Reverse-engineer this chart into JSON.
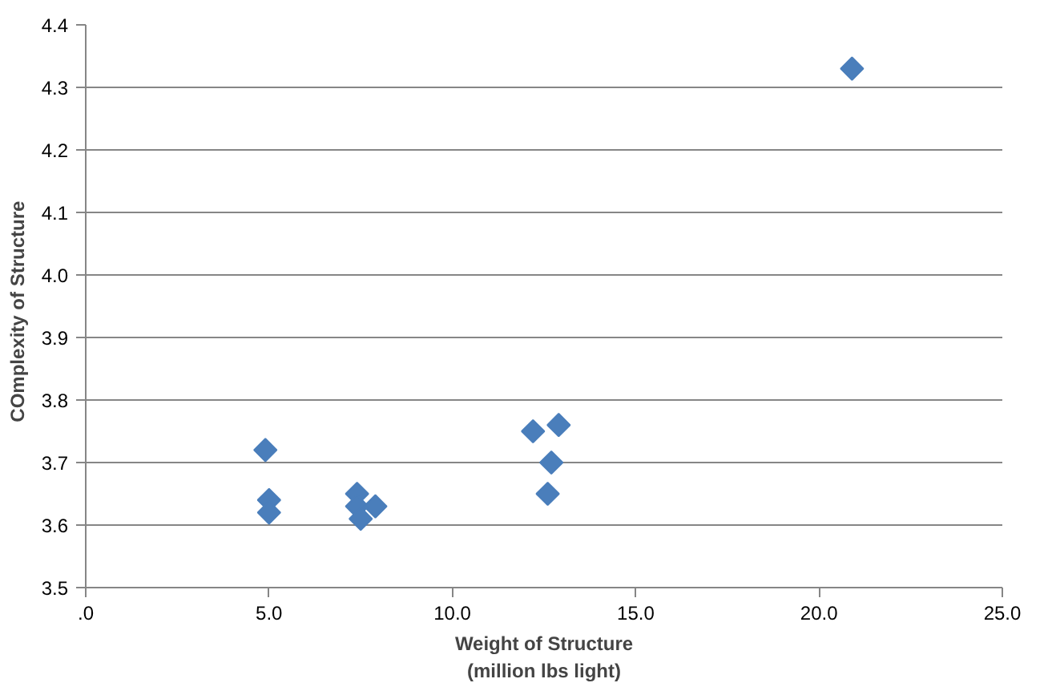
{
  "chart_data": {
    "type": "scatter",
    "xlabel": "Weight of Structure\n(million lbs light)",
    "ylabel": "COmplexity  of  Structure",
    "x": [
      4.9,
      5.0,
      5.0,
      7.4,
      7.4,
      7.5,
      7.9,
      12.2,
      12.9,
      12.7,
      12.6,
      20.9
    ],
    "series": [
      {
        "color": "#4a7ebb",
        "values": [
          3.72,
          3.64,
          3.62,
          3.65,
          3.63,
          3.61,
          3.63,
          3.75,
          3.76,
          3.7,
          3.65,
          4.33
        ]
      }
    ],
    "marker": "diamond",
    "grid": "y",
    "xlim": [
      0,
      25
    ],
    "xticks": [
      {
        "value": 0,
        "label": ".0"
      },
      {
        "value": 5,
        "label": "5.0"
      },
      {
        "value": 10,
        "label": "10.0"
      },
      {
        "value": 15,
        "label": "15.0"
      },
      {
        "value": 20,
        "label": "20.0"
      },
      {
        "value": 25,
        "label": "25.0"
      }
    ],
    "ylim": [
      3.5,
      4.4
    ],
    "yticks": [
      {
        "value": 3.5,
        "label": "3.5"
      },
      {
        "value": 3.6,
        "label": "3.6"
      },
      {
        "value": 3.7,
        "label": "3.7"
      },
      {
        "value": 3.8,
        "label": "3.8"
      },
      {
        "value": 3.9,
        "label": "3.9"
      },
      {
        "value": 4.0,
        "label": "4.0"
      },
      {
        "value": 4.1,
        "label": "4.1"
      },
      {
        "value": 4.2,
        "label": "4.2"
      },
      {
        "value": 4.3,
        "label": "4.3"
      },
      {
        "value": 4.4,
        "label": "4.4"
      }
    ]
  }
}
